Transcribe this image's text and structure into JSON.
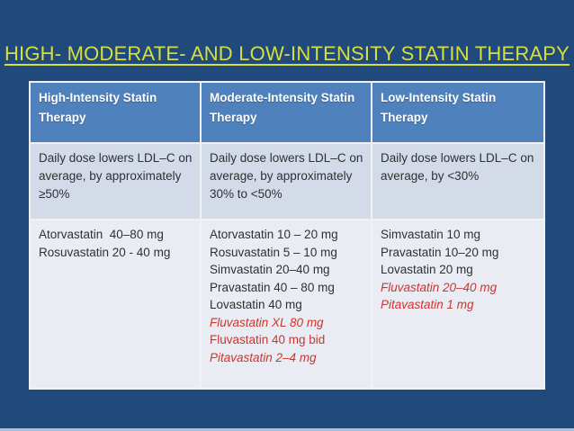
{
  "colors": {
    "background_navy": "#214A7C",
    "header_blue": "#4F81BD",
    "row_band_medium": "#D3DAE8",
    "row_band_light": "#E9EDF3",
    "title_yellow": "#D7DF3C",
    "red_text": "#CE332F",
    "body_text": "#303030",
    "table_border": "#F2F2F2",
    "bottom_strip": "#ABC0DA"
  },
  "slide": {
    "title": "HIGH- MODERATE- AND LOW-INTENSITY STATIN THERAPY"
  },
  "table": {
    "columns": [
      {
        "header": "High-Intensity Statin Therapy",
        "ldl_text": "Daily dose lowers LDL–C on average, by approximately ≥50%",
        "drugs": [
          {
            "text": "Atorvastatin  40–80 mg",
            "emphasis": "none"
          },
          {
            "text": "Rosuvastatin 20 - 40 mg",
            "emphasis": "none"
          }
        ]
      },
      {
        "header": "Moderate-Intensity Statin Therapy",
        "ldl_text": "Daily dose lowers LDL–C on average, by approximately 30% to <50%",
        "drugs": [
          {
            "text": "Atorvastatin 10 – 20 mg",
            "emphasis": "none"
          },
          {
            "text": "Rosuvastatin 5 – 10 mg",
            "emphasis": "none"
          },
          {
            "text": "Simvastatin 20–40 mg",
            "emphasis": "none"
          },
          {
            "text": "Pravastatin 40 – 80 mg",
            "emphasis": "none"
          },
          {
            "text": "Lovastatin 40 mg",
            "emphasis": "none"
          },
          {
            "text": "Fluvastatin XL 80 mg",
            "emphasis": "red-italic"
          },
          {
            "text": "Fluvastatin 40 mg bid",
            "emphasis": "red"
          },
          {
            "text": "Pitavastatin 2–4 mg",
            "emphasis": "red-italic"
          }
        ]
      },
      {
        "header": "Low-Intensity Statin Therapy",
        "ldl_text": "Daily dose lowers LDL–C on average, by <30%",
        "drugs": [
          {
            "text": "Simvastatin 10 mg",
            "emphasis": "none"
          },
          {
            "text": "Pravastatin 10–20 mg",
            "emphasis": "none"
          },
          {
            "text": "Lovastatin 20 mg",
            "emphasis": "none"
          },
          {
            "text": "Fluvastatin 20–40 mg",
            "emphasis": "red-italic"
          },
          {
            "text": "Pitavastatin 1 mg",
            "emphasis": "red-italic"
          }
        ]
      }
    ]
  }
}
